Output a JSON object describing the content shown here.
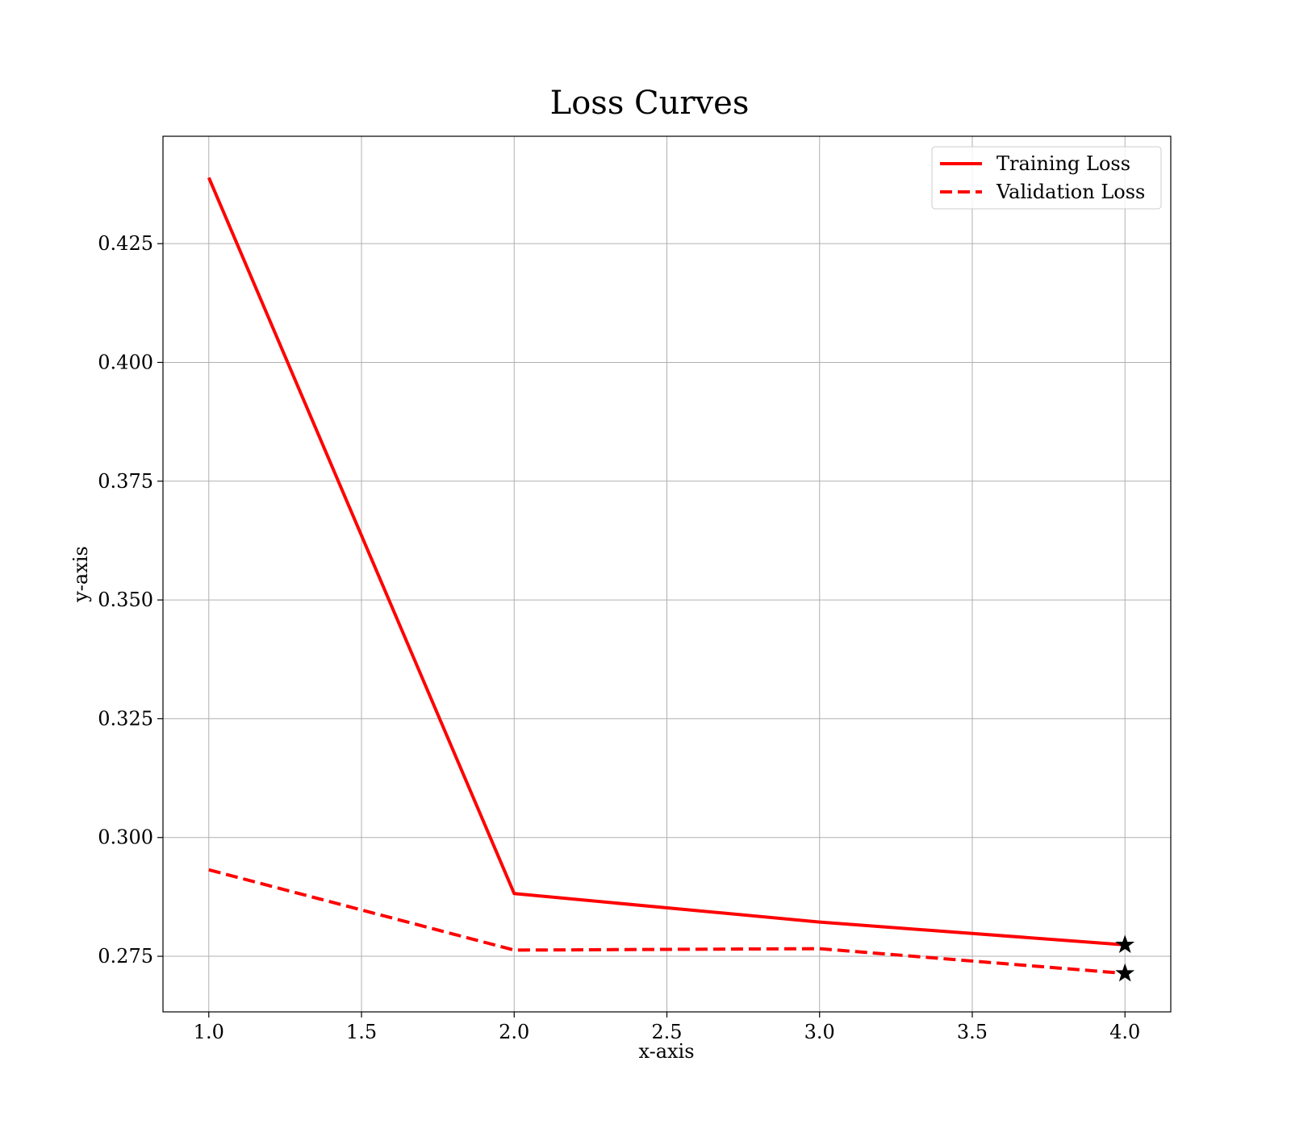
{
  "chart_data": {
    "type": "line",
    "title": "Loss Curves",
    "xlabel": "x-axis",
    "ylabel": "y-axis",
    "xlim": [
      0.85,
      4.15
    ],
    "ylim": [
      0.2633,
      0.4476
    ],
    "xticks": [
      1.0,
      1.5,
      2.0,
      2.5,
      3.0,
      3.5,
      4.0
    ],
    "xtick_labels": [
      "1.0",
      "1.5",
      "2.0",
      "2.5",
      "3.0",
      "3.5",
      "4.0"
    ],
    "yticks": [
      0.275,
      0.3,
      0.325,
      0.35,
      0.375,
      0.4,
      0.425
    ],
    "ytick_labels": [
      "0.275",
      "0.300",
      "0.325",
      "0.350",
      "0.375",
      "0.400",
      "0.425"
    ],
    "grid": true,
    "legend_position": "top-right",
    "series": [
      {
        "name": "Training Loss",
        "x": [
          1,
          2,
          3,
          4
        ],
        "y": [
          0.4389,
          0.2882,
          0.2822,
          0.2774
        ],
        "color": "#ff0000",
        "linestyle": "solid"
      },
      {
        "name": "Validation Loss",
        "x": [
          1,
          2,
          3,
          4
        ],
        "y": [
          0.2932,
          0.2763,
          0.2766,
          0.2714
        ],
        "color": "#ff0000",
        "linestyle": "dashed"
      }
    ],
    "markers": [
      {
        "series": "Training Loss",
        "x": 4,
        "y": 0.2774,
        "symbol": "star",
        "color": "#000000"
      },
      {
        "series": "Validation Loss",
        "x": 4,
        "y": 0.2714,
        "symbol": "star",
        "color": "#000000"
      }
    ]
  }
}
